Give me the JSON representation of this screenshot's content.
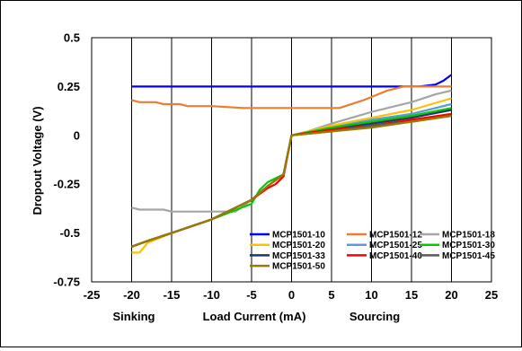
{
  "chart_data": {
    "type": "line",
    "title": "",
    "xlabel": "Load Current (mA)",
    "ylabel": "Dropout Voltage (V)",
    "x_side_labels": {
      "left": "Sinking",
      "right": "Sourcing"
    },
    "xlim": [
      -25,
      25
    ],
    "ylim": [
      -0.75,
      0.5
    ],
    "xticks": [
      "-25",
      "-20",
      "-15",
      "-10",
      "-5",
      "0",
      "5",
      "10",
      "15",
      "20",
      "25"
    ],
    "yticks": [
      "0.5",
      "0.25",
      "0",
      "-0.25",
      "-0.5",
      "-0.75"
    ],
    "grid": "vertical",
    "legend_position": "lower-right",
    "series": [
      {
        "name": "MCP1501-10",
        "color": "#0000FF",
        "points": [
          [
            -20,
            0.25
          ],
          [
            -10,
            0.25
          ],
          [
            0,
            0.25
          ],
          [
            10,
            0.25
          ],
          [
            16,
            0.25
          ],
          [
            18,
            0.26
          ],
          [
            19,
            0.28
          ],
          [
            20,
            0.31
          ]
        ]
      },
      {
        "name": "MCP1501-12",
        "color": "#ED7D31",
        "points": [
          [
            -20,
            0.18
          ],
          [
            -19,
            0.17
          ],
          [
            -17,
            0.17
          ],
          [
            -16,
            0.16
          ],
          [
            -14,
            0.16
          ],
          [
            -13,
            0.15
          ],
          [
            -10,
            0.15
          ],
          [
            -6,
            0.14
          ],
          [
            0,
            0.14
          ],
          [
            5,
            0.14
          ],
          [
            6,
            0.14
          ],
          [
            9,
            0.18
          ],
          [
            12,
            0.23
          ],
          [
            14,
            0.25
          ],
          [
            17,
            0.25
          ],
          [
            20,
            0.25
          ]
        ]
      },
      {
        "name": "MCP1501-18",
        "color": "#A5A5A5",
        "points": [
          [
            -20,
            -0.37
          ],
          [
            -19,
            -0.38
          ],
          [
            -16,
            -0.38
          ],
          [
            -15,
            -0.39
          ],
          [
            -10,
            -0.39
          ],
          [
            -7,
            -0.39
          ],
          [
            -5,
            -0.33
          ],
          [
            -3,
            -0.26
          ],
          [
            -1,
            -0.2
          ],
          [
            0,
            0.0
          ],
          [
            2,
            0.02
          ],
          [
            5,
            0.06
          ],
          [
            10,
            0.12
          ],
          [
            15,
            0.17
          ],
          [
            18,
            0.21
          ],
          [
            20,
            0.23
          ]
        ]
      },
      {
        "name": "MCP1501-20",
        "color": "#FFC000",
        "points": [
          [
            -20,
            -0.6
          ],
          [
            -19,
            -0.6
          ],
          [
            -18,
            -0.55
          ],
          [
            -15,
            -0.5
          ],
          [
            -10,
            -0.43
          ],
          [
            -5,
            -0.33
          ],
          [
            -3,
            -0.26
          ],
          [
            -1,
            -0.2
          ],
          [
            0,
            0.0
          ],
          [
            5,
            0.05
          ],
          [
            10,
            0.09
          ],
          [
            15,
            0.13
          ],
          [
            20,
            0.19
          ]
        ]
      },
      {
        "name": "MCP1501-25",
        "color": "#5B9BD5",
        "points": [
          [
            -20,
            -0.57
          ],
          [
            -18,
            -0.54
          ],
          [
            -15,
            -0.5
          ],
          [
            -10,
            -0.43
          ],
          [
            -5,
            -0.33
          ],
          [
            -3,
            -0.26
          ],
          [
            -1,
            -0.2
          ],
          [
            0,
            0.0
          ],
          [
            5,
            0.04
          ],
          [
            10,
            0.08
          ],
          [
            15,
            0.11
          ],
          [
            20,
            0.16
          ]
        ]
      },
      {
        "name": "MCP1501-30",
        "color": "#00CC00",
        "points": [
          [
            -20,
            -0.57
          ],
          [
            -18,
            -0.54
          ],
          [
            -15,
            -0.5
          ],
          [
            -10,
            -0.43
          ],
          [
            -5,
            -0.35
          ],
          [
            -4,
            -0.28
          ],
          [
            -3,
            -0.24
          ],
          [
            -1,
            -0.2
          ],
          [
            0,
            0.0
          ],
          [
            5,
            0.04
          ],
          [
            10,
            0.07
          ],
          [
            15,
            0.1
          ],
          [
            20,
            0.14
          ]
        ]
      },
      {
        "name": "MCP1501-33",
        "color": "#203864",
        "points": [
          [
            -20,
            -0.57
          ],
          [
            -18,
            -0.54
          ],
          [
            -15,
            -0.5
          ],
          [
            -10,
            -0.43
          ],
          [
            -5,
            -0.33
          ],
          [
            -3,
            -0.26
          ],
          [
            -1,
            -0.2
          ],
          [
            0,
            0.0
          ],
          [
            5,
            0.03
          ],
          [
            10,
            0.06
          ],
          [
            15,
            0.09
          ],
          [
            20,
            0.13
          ]
        ]
      },
      {
        "name": "MCP1501-40",
        "color": "#FF0000",
        "points": [
          [
            -20,
            -0.57
          ],
          [
            -18,
            -0.54
          ],
          [
            -15,
            -0.5
          ],
          [
            -10,
            -0.43
          ],
          [
            -5,
            -0.33
          ],
          [
            -3,
            -0.27
          ],
          [
            -2,
            -0.25
          ],
          [
            -1,
            -0.21
          ],
          [
            0,
            0.0
          ],
          [
            5,
            0.03
          ],
          [
            10,
            0.05
          ],
          [
            15,
            0.08
          ],
          [
            20,
            0.11
          ]
        ]
      },
      {
        "name": "MCP1501-45",
        "color": "#595959",
        "points": [
          [
            -20,
            -0.57
          ],
          [
            -18,
            -0.54
          ],
          [
            -15,
            -0.5
          ],
          [
            -10,
            -0.43
          ],
          [
            -5,
            -0.33
          ],
          [
            -3,
            -0.26
          ],
          [
            -1,
            -0.2
          ],
          [
            0,
            0.0
          ],
          [
            5,
            0.02
          ],
          [
            10,
            0.05
          ],
          [
            15,
            0.07
          ],
          [
            20,
            0.1
          ]
        ]
      },
      {
        "name": "MCP1501-50",
        "color": "#9C7A00",
        "points": [
          [
            -20,
            -0.57
          ],
          [
            -18,
            -0.54
          ],
          [
            -15,
            -0.5
          ],
          [
            -10,
            -0.43
          ],
          [
            -5,
            -0.33
          ],
          [
            -3,
            -0.26
          ],
          [
            -1,
            -0.2
          ],
          [
            0,
            0.0
          ],
          [
            5,
            0.02
          ],
          [
            10,
            0.04
          ],
          [
            15,
            0.07
          ],
          [
            20,
            0.1
          ]
        ]
      }
    ]
  }
}
